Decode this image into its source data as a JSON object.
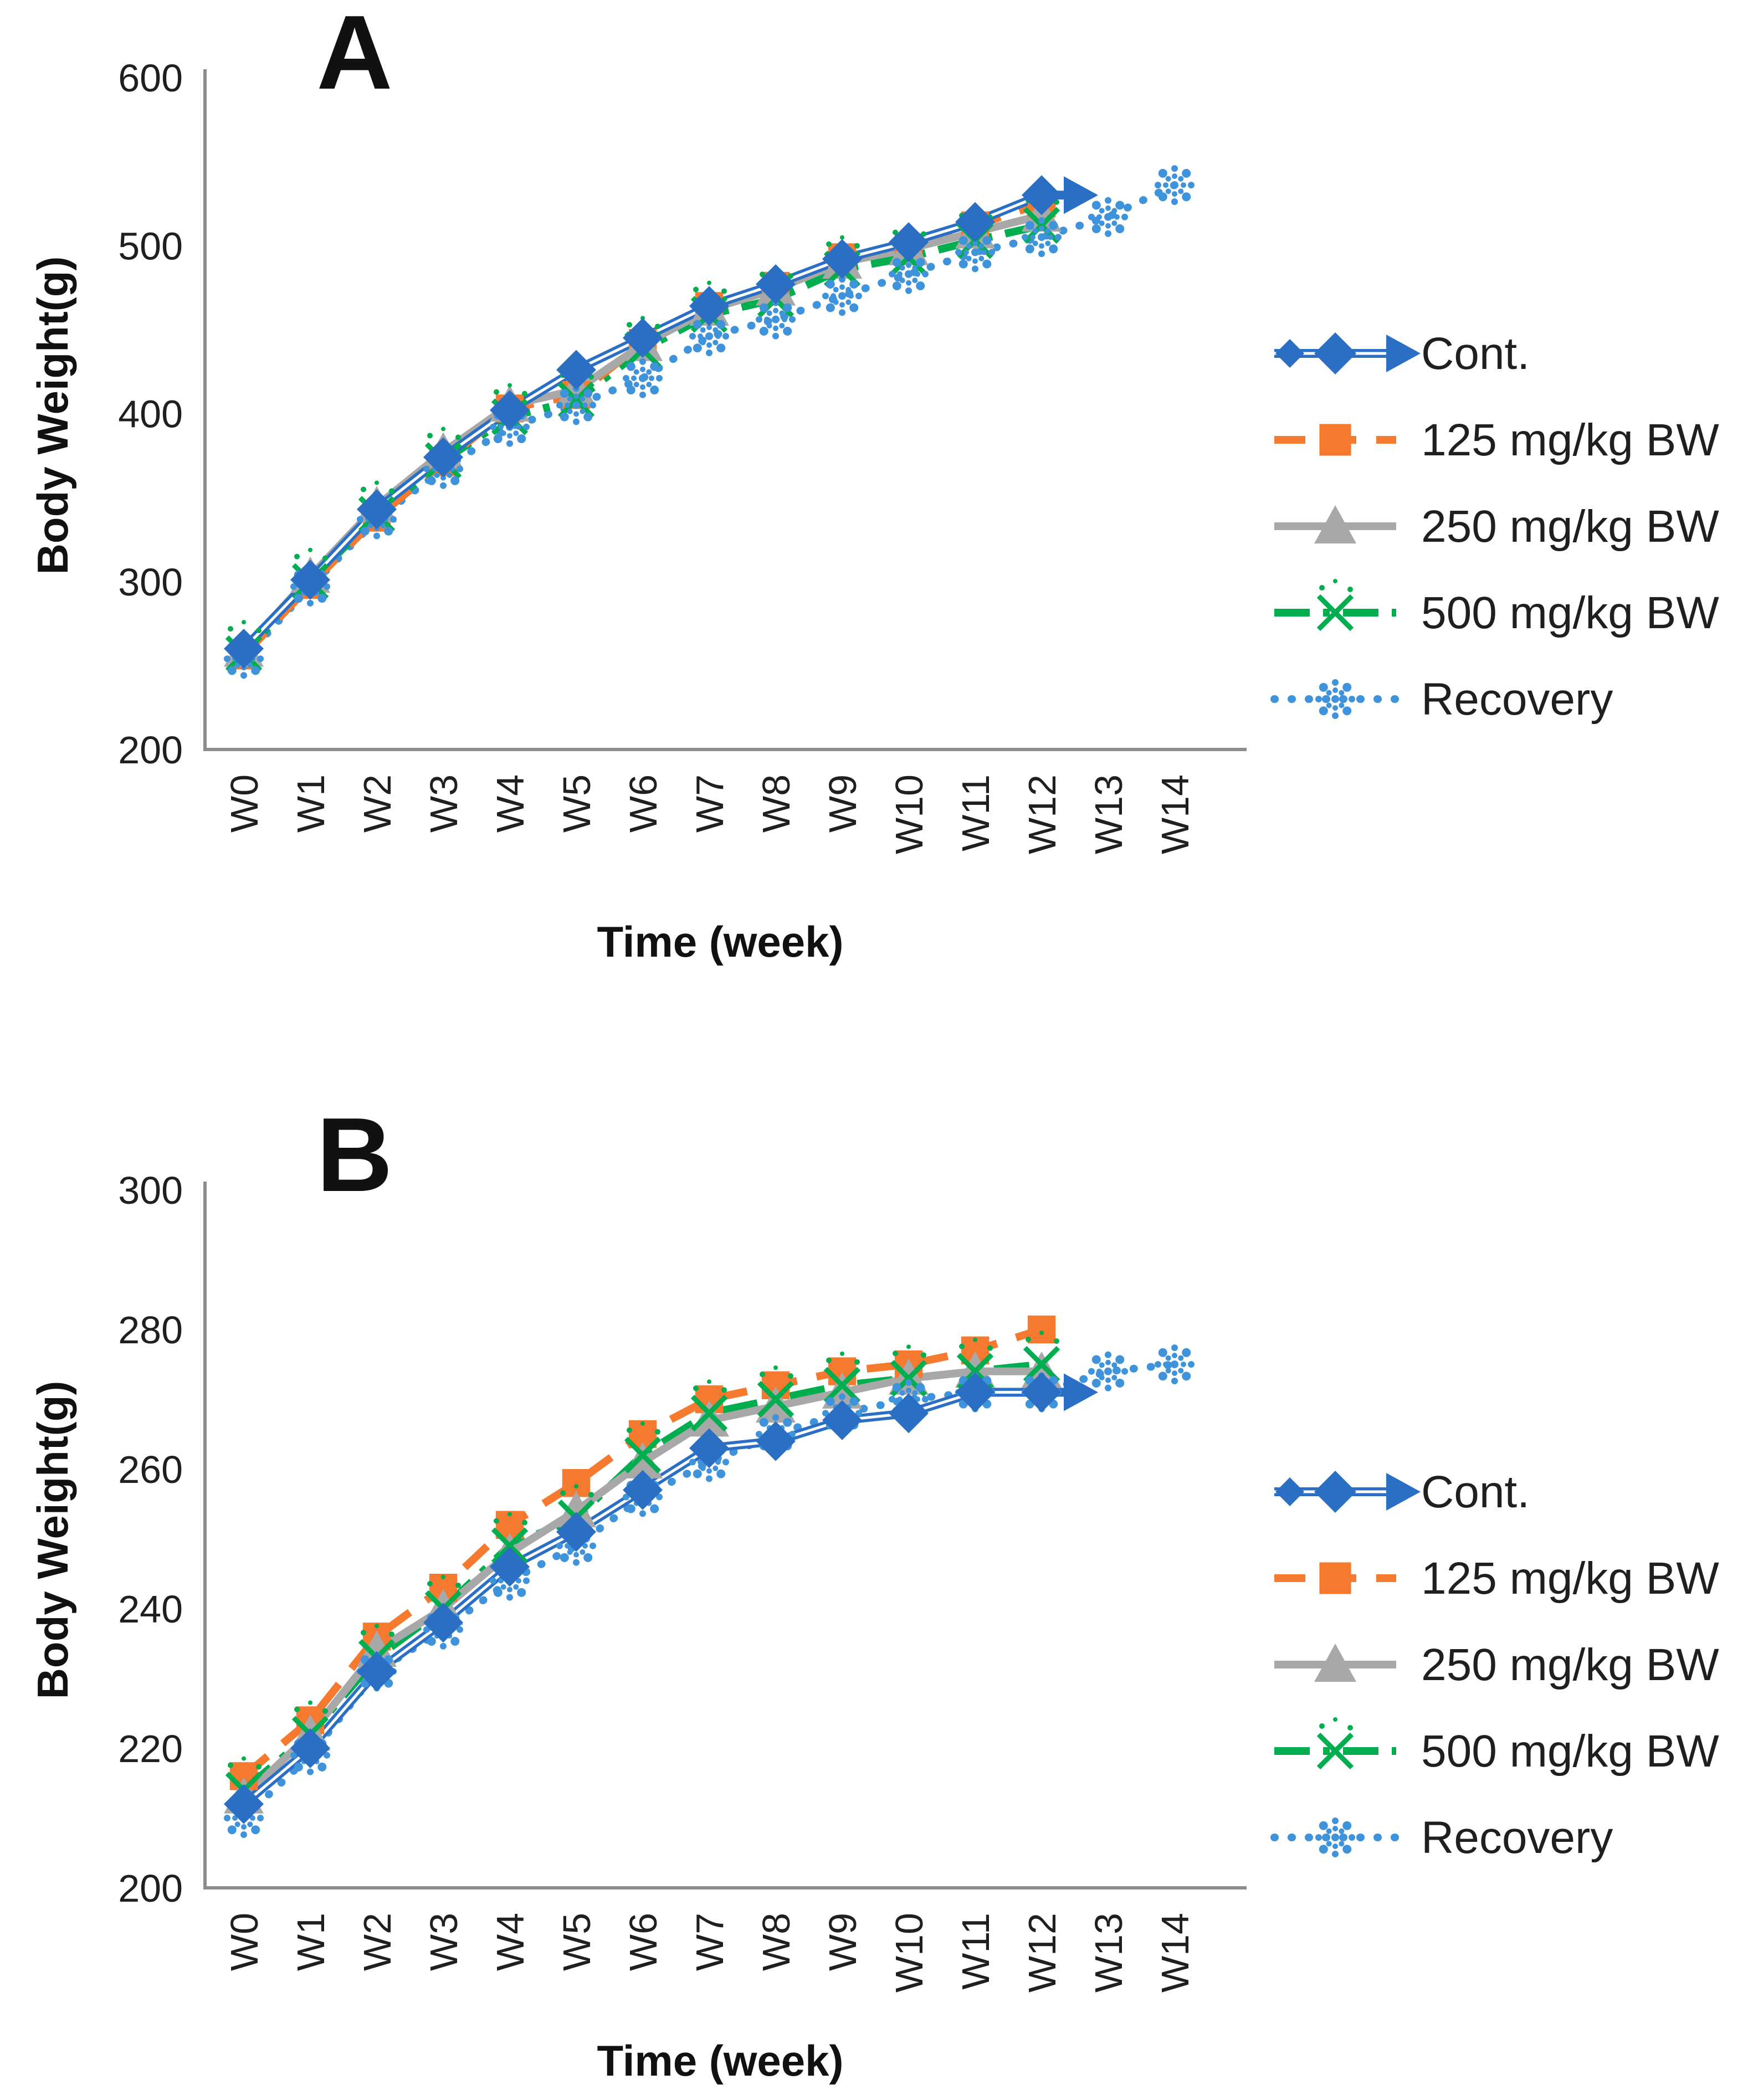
{
  "figure": {
    "description": "Body weight over time in control, treated (125/250/500 mg/kg BW) and recovery groups",
    "background": "#ffffff",
    "axis_color": "#8c8c8c",
    "text_color": "#1f1f1f"
  },
  "chart_data": [
    {
      "type": "line",
      "panel_label": "A",
      "xlabel": "Time (week)",
      "ylabel": "Body Weight(g)",
      "categories": [
        "W0",
        "W1",
        "W2",
        "W3",
        "W4",
        "W5",
        "W6",
        "W7",
        "W8",
        "W9",
        "W10",
        "W11",
        "W12",
        "W13",
        "W14"
      ],
      "ylim": [
        200,
        600
      ],
      "yticks": [
        200,
        300,
        400,
        500,
        600
      ],
      "grid": false,
      "legend_position": "right",
      "series": [
        {
          "name": "Cont.",
          "color": "#2a6fc4",
          "marker": "diamond",
          "line": "solid-double",
          "arrow_end": true,
          "values": [
            260,
            301,
            343,
            374,
            402,
            426,
            445,
            464,
            477,
            492,
            502,
            514,
            530
          ]
        },
        {
          "name": "125 mg/kg BW",
          "color": "#f5792e",
          "marker": "square",
          "line": "dashed",
          "arrow_end": false,
          "values": [
            256,
            298,
            338,
            371,
            403,
            411,
            442,
            464,
            476,
            493,
            499,
            512,
            525
          ]
        },
        {
          "name": "250 mg/kg BW",
          "color": "#a8a8a8",
          "marker": "triangle",
          "line": "solid",
          "arrow_end": false,
          "values": [
            259,
            303,
            345,
            377,
            405,
            414,
            441,
            462,
            474,
            490,
            498,
            508,
            518
          ]
        },
        {
          "name": "500 mg/kg BW",
          "color": "#00ae4f",
          "marker": "x-dots",
          "line": "dash-dot",
          "arrow_end": false,
          "values": [
            257,
            300,
            340,
            372,
            398,
            408,
            438,
            459,
            468,
            486,
            493,
            503,
            512
          ]
        },
        {
          "name": "Recovery",
          "color": "#3f93db",
          "marker": "dot-star",
          "line": "dotted",
          "arrow_end": false,
          "values": [
            254,
            297,
            337,
            367,
            392,
            405,
            421,
            446,
            456,
            470,
            483,
            496,
            505,
            517,
            536
          ]
        }
      ]
    },
    {
      "type": "line",
      "panel_label": "B",
      "xlabel": "Time (week)",
      "ylabel": "Body Weight(g)",
      "categories": [
        "W0",
        "W1",
        "W2",
        "W3",
        "W4",
        "W5",
        "W6",
        "W7",
        "W8",
        "W9",
        "W10",
        "W11",
        "W12",
        "W13",
        "W14"
      ],
      "ylim": [
        200,
        300
      ],
      "yticks": [
        200,
        220,
        240,
        260,
        280,
        300
      ],
      "grid": false,
      "legend_position": "right",
      "series": [
        {
          "name": "Cont.",
          "color": "#2a6fc4",
          "marker": "diamond",
          "line": "solid-double",
          "arrow_end": true,
          "values": [
            212,
            220,
            231,
            238,
            246,
            251,
            257,
            263,
            264,
            267,
            268,
            271,
            271
          ]
        },
        {
          "name": "125 mg/kg BW",
          "color": "#f5792e",
          "marker": "square",
          "line": "dashed",
          "arrow_end": false,
          "values": [
            216,
            224,
            236,
            243,
            252,
            258,
            265,
            270,
            272,
            274,
            275,
            277,
            280
          ]
        },
        {
          "name": "250 mg/kg BW",
          "color": "#a8a8a8",
          "marker": "triangle",
          "line": "solid",
          "arrow_end": false,
          "values": [
            213,
            222,
            234,
            240,
            248,
            254,
            261,
            267,
            269,
            271,
            273,
            274,
            274
          ]
        },
        {
          "name": "500 mg/kg BW",
          "color": "#00ae4f",
          "marker": "x-dots",
          "line": "dash-dot",
          "arrow_end": false,
          "values": [
            214,
            222,
            233,
            240,
            249,
            253,
            262,
            268,
            270,
            272,
            273,
            274,
            275
          ]
        },
        {
          "name": "Recovery",
          "color": "#3f93db",
          "marker": "dot-star",
          "line": "dotted",
          "arrow_end": false,
          "values": [
            210,
            219,
            231,
            237,
            244,
            249,
            256,
            261,
            265,
            268,
            270,
            271,
            271,
            274,
            275
          ]
        }
      ]
    }
  ]
}
